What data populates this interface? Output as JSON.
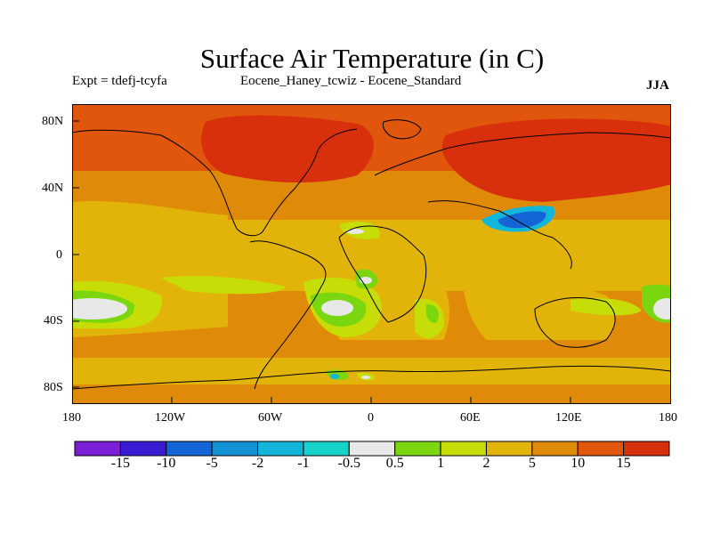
{
  "title": "Surface Air Temperature (in C)",
  "expt_label": "Expt = tdefj-tcyfa",
  "difference_label": "Eocene_Haney_tcwiz - Eocene_Standard",
  "season": "JJA",
  "lat_labels": [
    "80N",
    "40N",
    "0",
    "40S",
    "80S"
  ],
  "lon_labels": [
    "180",
    "120W",
    "60W",
    "0",
    "60E",
    "120E",
    "180"
  ],
  "colorbar": {
    "labels": [
      "-15",
      "-10",
      "-5",
      "-2",
      "-1",
      "-0.5",
      "0.5",
      "1",
      "2",
      "5",
      "10",
      "15"
    ],
    "colors": [
      "#7a1fd6",
      "#3a1bd4",
      "#1466d6",
      "#1392d6",
      "#12b6d9",
      "#17d3cc",
      "#e8e8e8",
      "#7ad60f",
      "#c6dd07",
      "#e2b40a",
      "#e08a0a",
      "#e0560c",
      "#d8300c"
    ]
  },
  "field_colors": {
    "hot": "#d8300c",
    "warm": "#e0560c",
    "mid": "#e08a0a",
    "mild": "#e2b40a",
    "cool": "#c6dd07",
    "green": "#7ad60f",
    "neutral": "#e8e8e8",
    "cyan": "#12b6d9",
    "blue": "#1466d6"
  }
}
